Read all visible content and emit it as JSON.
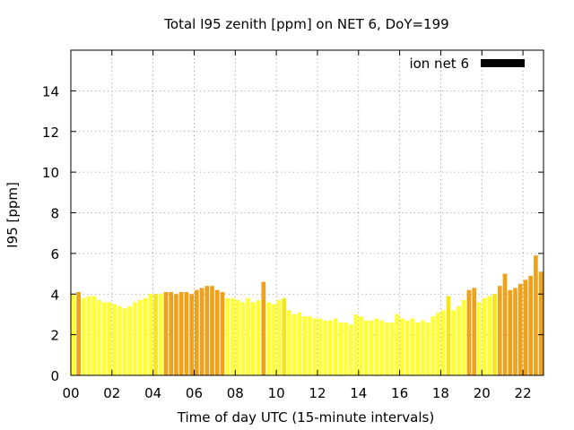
{
  "chart_data": {
    "type": "bar",
    "title": "Total I95 zenith [ppm] on NET 6, DoY=199",
    "xlabel": "Time of day UTC (15-minute intervals)",
    "ylabel": "I95 [ppm]",
    "xlim": [
      0,
      23
    ],
    "ylim": [
      0,
      16
    ],
    "x_ticks": [
      "00",
      "02",
      "04",
      "06",
      "08",
      "10",
      "12",
      "14",
      "16",
      "18",
      "20",
      "22"
    ],
    "y_ticks": [
      "0",
      "2",
      "4",
      "6",
      "8",
      "10",
      "12",
      "14"
    ],
    "grid": true,
    "legend": {
      "position": "top-right",
      "label": "ion net 6",
      "color": "#000000"
    },
    "bar_interval_hours": 0.25,
    "colors": {
      "low": "#ffff33",
      "mid": "#f5e61a",
      "high": "#f0a11a"
    },
    "values": [
      4.0,
      4.1,
      3.8,
      3.9,
      3.9,
      3.7,
      3.6,
      3.6,
      3.5,
      3.4,
      3.3,
      3.4,
      3.6,
      3.7,
      3.8,
      4.0,
      4.0,
      4.0,
      4.1,
      4.1,
      4.0,
      4.1,
      4.1,
      4.0,
      4.2,
      4.3,
      4.4,
      4.4,
      4.2,
      4.1,
      3.8,
      3.8,
      3.7,
      3.6,
      3.8,
      3.6,
      3.7,
      4.6,
      3.6,
      3.5,
      3.7,
      3.8,
      3.2,
      3.0,
      3.1,
      2.9,
      2.9,
      2.8,
      2.8,
      2.7,
      2.7,
      2.8,
      2.6,
      2.6,
      2.5,
      3.0,
      2.9,
      2.7,
      2.7,
      2.8,
      2.7,
      2.6,
      2.6,
      3.0,
      2.8,
      2.7,
      2.8,
      2.6,
      2.7,
      2.6,
      2.9,
      3.1,
      3.2,
      3.9,
      3.2,
      3.4,
      3.7,
      4.2,
      4.3,
      3.6,
      3.8,
      3.9,
      4.0,
      4.4,
      5.0,
      4.2,
      4.3,
      4.5,
      4.7,
      4.9,
      5.9,
      5.1
    ],
    "bar_colors": [
      "low",
      "high",
      "low",
      "low",
      "low",
      "low",
      "low",
      "low",
      "low",
      "low",
      "low",
      "low",
      "low",
      "low",
      "low",
      "low",
      "mid",
      "low",
      "high",
      "high",
      "high",
      "high",
      "high",
      "high",
      "high",
      "high",
      "high",
      "high",
      "high",
      "high",
      "low",
      "low",
      "low",
      "low",
      "low",
      "low",
      "low",
      "high",
      "low",
      "low",
      "low",
      "mid",
      "low",
      "low",
      "low",
      "low",
      "low",
      "low",
      "low",
      "low",
      "low",
      "low",
      "low",
      "low",
      "low",
      "low",
      "low",
      "low",
      "low",
      "low",
      "low",
      "low",
      "low",
      "low",
      "low",
      "low",
      "low",
      "low",
      "low",
      "low",
      "low",
      "low",
      "low",
      "mid",
      "low",
      "low",
      "low",
      "high",
      "high",
      "low",
      "low",
      "low",
      "mid",
      "high",
      "high",
      "high",
      "high",
      "high",
      "high",
      "high",
      "high",
      "high"
    ]
  }
}
